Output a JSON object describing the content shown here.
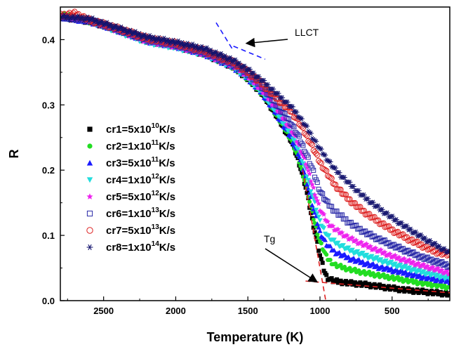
{
  "chart_data": {
    "type": "scatter",
    "title": "",
    "xlabel": "Temperature (K)",
    "ylabel": "R",
    "xlim": [
      2800,
      100
    ],
    "ylim": [
      0,
      0.45
    ],
    "x_reversed": true,
    "x_ticks": [
      2500,
      2000,
      1500,
      1000,
      500
    ],
    "y_ticks": [
      0.0,
      0.1,
      0.2,
      0.3,
      0.4
    ],
    "x_tick_labels": [
      "2500",
      "2000",
      "1500",
      "1000",
      "500"
    ],
    "y_tick_labels": [
      "0.0",
      "0.1",
      "0.2",
      "0.3",
      "0.4"
    ],
    "grid": false,
    "legend_position": "left",
    "series": [
      {
        "name": "cr1=5x10^10K/s",
        "label_base": "cr1=5x10",
        "label_exp": "10",
        "label_unit": "K/s",
        "color": "#000000",
        "marker": "square-filled",
        "x": [
          2800,
          2600,
          2400,
          2200,
          2000,
          1800,
          1600,
          1500,
          1400,
          1300,
          1200,
          1150,
          1100,
          1050,
          1000,
          970,
          950,
          900,
          800,
          700,
          600,
          500,
          400,
          300,
          200,
          100
        ],
        "y": [
          0.435,
          0.428,
          0.415,
          0.398,
          0.39,
          0.378,
          0.358,
          0.34,
          0.317,
          0.283,
          0.245,
          0.215,
          0.175,
          0.12,
          0.07,
          0.045,
          0.035,
          0.03,
          0.027,
          0.025,
          0.022,
          0.019,
          0.016,
          0.014,
          0.012,
          0.01
        ]
      },
      {
        "name": "cr2=1x10^11K/s",
        "label_base": "cr2=1x10",
        "label_exp": "11",
        "label_unit": "K/s",
        "color": "#22dd22",
        "marker": "circle-filled",
        "x": [
          2800,
          2600,
          2400,
          2200,
          2000,
          1800,
          1600,
          1500,
          1400,
          1300,
          1200,
          1150,
          1100,
          1050,
          1000,
          950,
          900,
          800,
          700,
          600,
          500,
          400,
          300,
          200,
          100
        ],
        "y": [
          0.44,
          0.428,
          0.415,
          0.398,
          0.39,
          0.378,
          0.358,
          0.34,
          0.317,
          0.284,
          0.247,
          0.218,
          0.18,
          0.13,
          0.09,
          0.065,
          0.055,
          0.048,
          0.043,
          0.039,
          0.035,
          0.031,
          0.027,
          0.024,
          0.02
        ]
      },
      {
        "name": "cr3=5x10^11K/s",
        "label_base": "cr3=5x10",
        "label_exp": "11",
        "label_unit": "K/s",
        "color": "#1a1aff",
        "marker": "triangle-up",
        "x": [
          2800,
          2600,
          2400,
          2200,
          2000,
          1800,
          1600,
          1500,
          1400,
          1300,
          1200,
          1150,
          1100,
          1050,
          1000,
          950,
          900,
          800,
          700,
          600,
          500,
          400,
          300,
          200,
          100
        ],
        "y": [
          0.435,
          0.428,
          0.415,
          0.398,
          0.39,
          0.378,
          0.358,
          0.341,
          0.318,
          0.286,
          0.25,
          0.225,
          0.19,
          0.145,
          0.105,
          0.085,
          0.075,
          0.065,
          0.058,
          0.052,
          0.047,
          0.042,
          0.037,
          0.033,
          0.03
        ]
      },
      {
        "name": "cr4=1x10^12K/s",
        "label_base": "cr4=1x10",
        "label_exp": "12",
        "label_unit": "K/s",
        "color": "#22dddd",
        "marker": "triangle-down",
        "x": [
          2800,
          2600,
          2400,
          2200,
          2000,
          1800,
          1600,
          1500,
          1400,
          1300,
          1200,
          1150,
          1100,
          1050,
          1000,
          950,
          900,
          800,
          700,
          600,
          500,
          400,
          300,
          200,
          100
        ],
        "y": [
          0.435,
          0.43,
          0.412,
          0.396,
          0.388,
          0.377,
          0.358,
          0.341,
          0.319,
          0.288,
          0.255,
          0.232,
          0.2,
          0.16,
          0.12,
          0.1,
          0.09,
          0.078,
          0.07,
          0.063,
          0.056,
          0.05,
          0.044,
          0.039,
          0.034
        ]
      },
      {
        "name": "cr5=5x10^12K/s",
        "label_base": "cr5=5x10",
        "label_exp": "12",
        "label_unit": "K/s",
        "color": "#ee22ee",
        "marker": "star",
        "x": [
          2800,
          2600,
          2400,
          2200,
          2000,
          1800,
          1600,
          1500,
          1400,
          1300,
          1200,
          1150,
          1100,
          1050,
          1000,
          950,
          900,
          800,
          700,
          600,
          500,
          400,
          300,
          200,
          100
        ],
        "y": [
          0.435,
          0.43,
          0.414,
          0.398,
          0.39,
          0.378,
          0.36,
          0.344,
          0.322,
          0.294,
          0.262,
          0.24,
          0.212,
          0.175,
          0.14,
          0.12,
          0.11,
          0.096,
          0.086,
          0.077,
          0.068,
          0.061,
          0.054,
          0.048,
          0.042
        ]
      },
      {
        "name": "cr6=1x10^13K/s",
        "label_base": "cr6=1x10",
        "label_exp": "13",
        "label_unit": "K/s",
        "color": "#2a2aa8",
        "marker": "square-open",
        "x": [
          2800,
          2600,
          2400,
          2200,
          2000,
          1800,
          1600,
          1500,
          1400,
          1300,
          1200,
          1150,
          1100,
          1050,
          1000,
          950,
          900,
          800,
          700,
          600,
          500,
          400,
          300,
          200,
          100
        ],
        "y": [
          0.435,
          0.43,
          0.415,
          0.4,
          0.392,
          0.38,
          0.362,
          0.347,
          0.327,
          0.3,
          0.272,
          0.252,
          0.228,
          0.2,
          0.168,
          0.15,
          0.138,
          0.12,
          0.106,
          0.095,
          0.085,
          0.076,
          0.067,
          0.06,
          0.053
        ]
      },
      {
        "name": "cr7=5x10^13K/s",
        "label_base": "cr7=5x10",
        "label_exp": "13",
        "label_unit": "K/s",
        "color": "#dd2222",
        "marker": "circle-open",
        "x": [
          2800,
          2700,
          2600,
          2400,
          2200,
          2000,
          1800,
          1600,
          1500,
          1400,
          1300,
          1200,
          1150,
          1100,
          1050,
          1000,
          950,
          900,
          800,
          700,
          600,
          500,
          400,
          300,
          200,
          100
        ],
        "y": [
          0.437,
          0.44,
          0.43,
          0.417,
          0.402,
          0.394,
          0.383,
          0.365,
          0.35,
          0.332,
          0.31,
          0.29,
          0.275,
          0.255,
          0.235,
          0.212,
          0.195,
          0.178,
          0.155,
          0.137,
          0.122,
          0.108,
          0.096,
          0.085,
          0.075,
          0.07
        ]
      },
      {
        "name": "cr8=1x10^14K/s",
        "label_base": "cr8=1x10",
        "label_exp": "14",
        "label_unit": "K/s",
        "color": "#14146e",
        "marker": "asterisk",
        "x": [
          2800,
          2600,
          2400,
          2200,
          2000,
          1800,
          1600,
          1500,
          1400,
          1300,
          1200,
          1150,
          1100,
          1050,
          1000,
          950,
          900,
          800,
          700,
          600,
          500,
          400,
          300,
          200,
          100
        ],
        "y": [
          0.435,
          0.432,
          0.418,
          0.404,
          0.396,
          0.386,
          0.368,
          0.354,
          0.337,
          0.317,
          0.297,
          0.284,
          0.268,
          0.25,
          0.232,
          0.217,
          0.202,
          0.18,
          0.16,
          0.143,
          0.127,
          0.112,
          0.098,
          0.085,
          0.073
        ]
      }
    ],
    "annotations": [
      {
        "text": "LLCT",
        "arrow_to": [
          1550,
          0.39
        ]
      },
      {
        "text": "Tg",
        "arrow_to": [
          1000,
          0.035
        ]
      }
    ],
    "guide_lines": [
      {
        "x": [
          1720,
          1600
        ],
        "y": [
          0.426,
          0.383
        ],
        "color": "#1a1aff",
        "style": "dashed"
      },
      {
        "x": [
          1600,
          1380
        ],
        "y": [
          0.39,
          0.37
        ],
        "color": "#1a1aff",
        "style": "dashed"
      },
      {
        "x": [
          1120,
          960
        ],
        "y": [
          0.2,
          0.0
        ],
        "color": "#dd2222",
        "style": "dashed"
      },
      {
        "x": [
          1100,
          100
        ],
        "y": [
          0.03,
          0.012
        ],
        "color": "#dd2222",
        "style": "dashed"
      }
    ]
  }
}
